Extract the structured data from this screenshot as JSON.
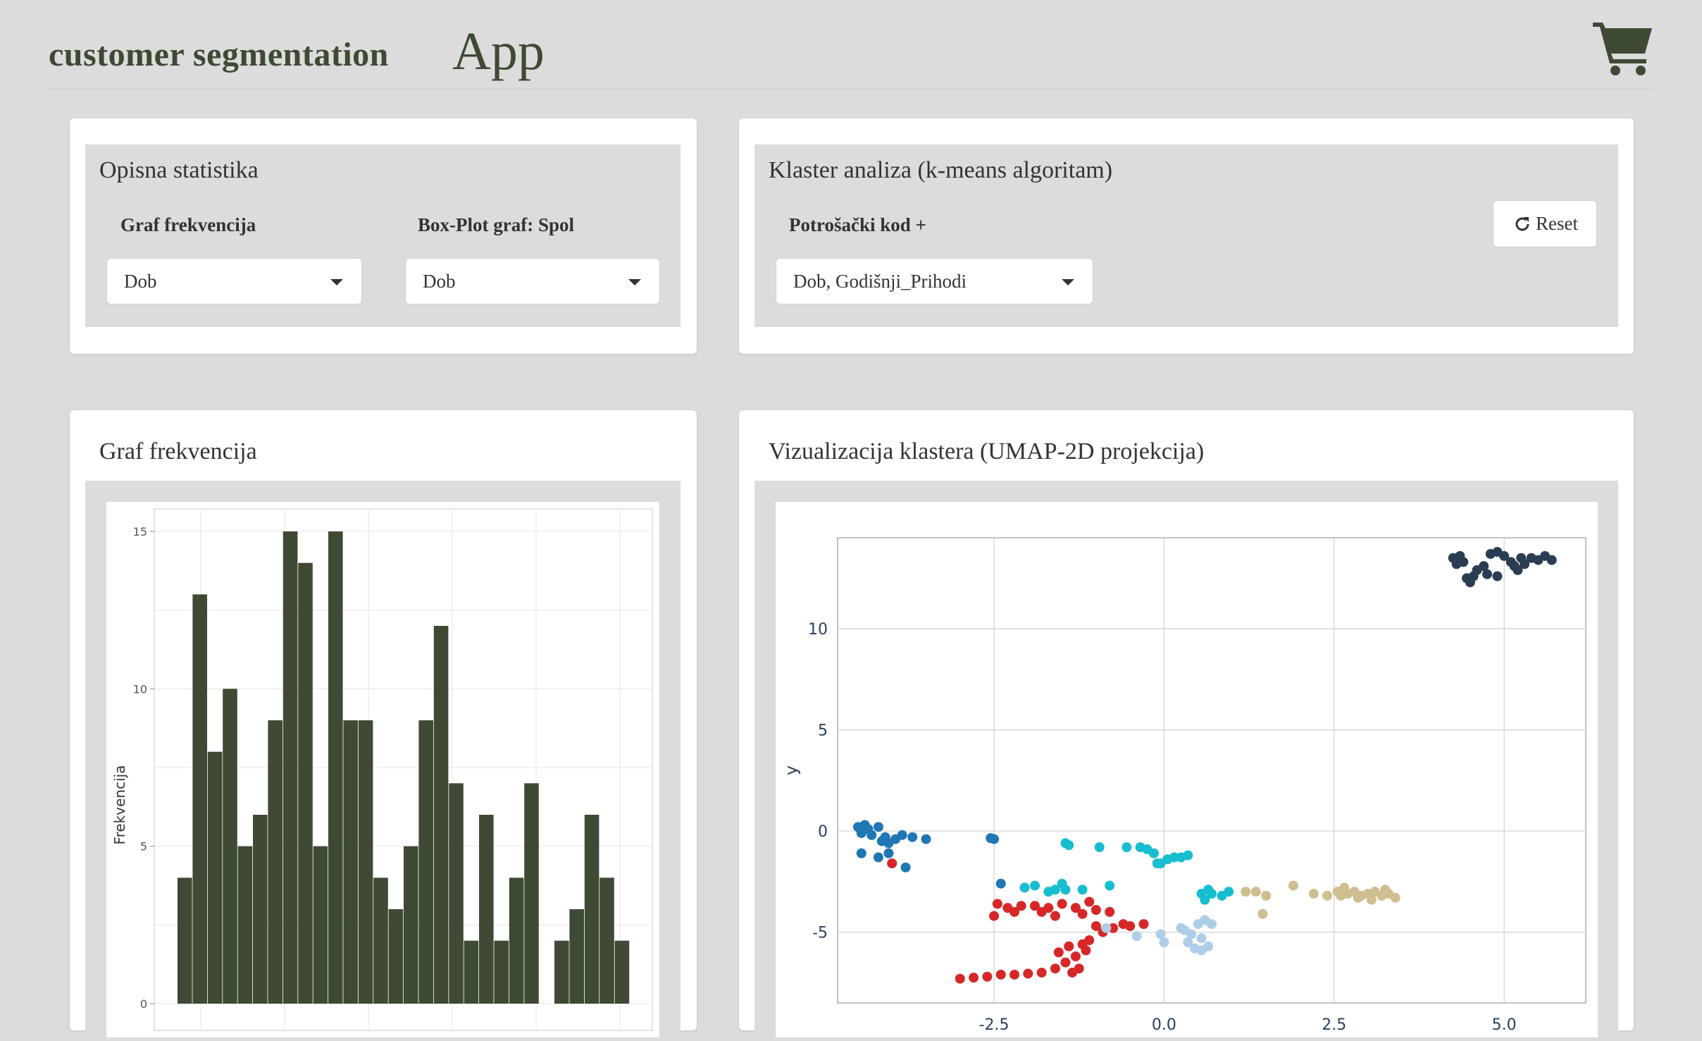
{
  "app": {
    "title_main": "customer segmentation",
    "title_suffix": "App",
    "cart_icon": "shopping-cart-icon",
    "accent_color": "#3e4a33"
  },
  "descriptive": {
    "title": "Opisna statistika",
    "freq_label": "Graf frekvencija",
    "freq_value": "Dob",
    "box_label": "Box-Plot graf: Spol",
    "box_value": "Dob"
  },
  "cluster": {
    "title": "Klaster analiza (k-means algoritam)",
    "code_label": "Potrošački kod +",
    "code_value": "Dob, Godišnji_Prihodi",
    "reset_label": "Reset"
  },
  "freq_chart_card": {
    "title": "Graf frekvencija"
  },
  "umap_card": {
    "title": "Vizualizacija klastera (UMAP-2D projekcija)"
  },
  "chart_data": [
    {
      "type": "bar",
      "ylabel": "Frekvencija",
      "ylim": [
        0,
        15
      ],
      "yticks": [
        "0",
        "5",
        "10",
        "15"
      ],
      "grid": true,
      "color": "#3e4a33",
      "values": [
        4,
        13,
        8,
        10,
        5,
        6,
        9,
        15,
        14,
        5,
        15,
        9,
        9,
        4,
        3,
        5,
        9,
        12,
        7,
        2,
        6,
        2,
        4,
        7,
        0,
        2,
        3,
        6,
        4,
        2
      ]
    },
    {
      "type": "scatter",
      "ylabel": "y",
      "yticks": [
        "10",
        "5",
        "0",
        "-5"
      ],
      "xticks": [
        "-2.5",
        "0.0",
        "2.5",
        "5.0"
      ],
      "xlim": [
        -4.8,
        6.2
      ],
      "ylim": [
        -8.5,
        14.5
      ],
      "grid": true,
      "series": [
        {
          "color": "#2b3d52",
          "points": [
            [
              4.25,
              13.5
            ],
            [
              4.3,
              13.2
            ],
            [
              4.35,
              13.6
            ],
            [
              4.4,
              13.3
            ],
            [
              4.45,
              12.5
            ],
            [
              4.5,
              12.3
            ],
            [
              4.55,
              12.6
            ],
            [
              4.6,
              12.9
            ],
            [
              4.7,
              13.1
            ],
            [
              4.75,
              12.7
            ],
            [
              4.8,
              13.7
            ],
            [
              4.9,
              12.6
            ],
            [
              5.0,
              13.6
            ],
            [
              5.1,
              13.3
            ],
            [
              5.2,
              12.9
            ],
            [
              5.25,
              13.5
            ],
            [
              5.3,
              13.2
            ],
            [
              5.4,
              13.5
            ],
            [
              5.5,
              13.4
            ],
            [
              5.6,
              13.6
            ],
            [
              5.7,
              13.4
            ],
            [
              4.9,
              13.8
            ],
            [
              5.15,
              13.1
            ]
          ]
        },
        {
          "color": "#1f77b4",
          "points": [
            [
              -4.5,
              0.2
            ],
            [
              -4.45,
              -0.1
            ],
            [
              -4.4,
              0.3
            ],
            [
              -4.35,
              0.1
            ],
            [
              -4.3,
              -0.2
            ],
            [
              -4.2,
              0.2
            ],
            [
              -4.15,
              -0.5
            ],
            [
              -4.1,
              -0.3
            ],
            [
              -4.05,
              -0.6
            ],
            [
              -3.95,
              -0.4
            ],
            [
              -3.85,
              -0.2
            ],
            [
              -3.7,
              -0.3
            ],
            [
              -3.5,
              -0.4
            ],
            [
              -4.45,
              -1.1
            ],
            [
              -4.2,
              -1.3
            ],
            [
              -4.05,
              -1.1
            ],
            [
              -3.8,
              -1.8
            ],
            [
              -2.55,
              -0.35
            ],
            [
              -2.5,
              -0.4
            ],
            [
              -2.4,
              -2.6
            ]
          ]
        },
        {
          "color": "#d62728",
          "points": [
            [
              -4.0,
              -1.6
            ],
            [
              -2.45,
              -3.6
            ],
            [
              -2.3,
              -3.8
            ],
            [
              -2.1,
              -3.7
            ],
            [
              -1.9,
              -3.7
            ],
            [
              -1.7,
              -3.8
            ],
            [
              -1.5,
              -3.6
            ],
            [
              -2.5,
              -4.2
            ],
            [
              -2.2,
              -4.0
            ],
            [
              -1.8,
              -4.0
            ],
            [
              -1.6,
              -4.2
            ],
            [
              -1.3,
              -3.8
            ],
            [
              -1.2,
              -4.1
            ],
            [
              -1.0,
              -3.9
            ],
            [
              -0.8,
              -4.0
            ],
            [
              -1.1,
              -3.5
            ],
            [
              -1.0,
              -4.7
            ],
            [
              -0.9,
              -5.0
            ],
            [
              -0.75,
              -4.8
            ],
            [
              -0.6,
              -4.6
            ],
            [
              -0.5,
              -4.7
            ],
            [
              -0.3,
              -4.6
            ],
            [
              -1.1,
              -5.4
            ],
            [
              -1.15,
              -5.9
            ],
            [
              -1.3,
              -6.2
            ],
            [
              -1.45,
              -6.5
            ],
            [
              -1.6,
              -6.8
            ],
            [
              -1.8,
              -7.0
            ],
            [
              -2.0,
              -7.05
            ],
            [
              -2.2,
              -7.1
            ],
            [
              -2.4,
              -7.1
            ],
            [
              -2.6,
              -7.2
            ],
            [
              -2.8,
              -7.25
            ],
            [
              -3.0,
              -7.3
            ],
            [
              -1.35,
              -7.0
            ],
            [
              -1.25,
              -6.8
            ],
            [
              -1.4,
              -5.7
            ],
            [
              -1.55,
              -6.0
            ],
            [
              -1.2,
              -5.6
            ]
          ]
        },
        {
          "color": "#17becf",
          "points": [
            [
              -2.05,
              -2.8
            ],
            [
              -1.9,
              -2.7
            ],
            [
              -1.7,
              -3.0
            ],
            [
              -1.6,
              -2.9
            ],
            [
              -1.5,
              -2.6
            ],
            [
              -1.45,
              -2.9
            ],
            [
              -1.2,
              -2.9
            ],
            [
              -1.4,
              -0.7
            ],
            [
              -1.45,
              -0.6
            ],
            [
              -0.95,
              -0.8
            ],
            [
              -0.8,
              -2.7
            ],
            [
              -0.55,
              -0.8
            ],
            [
              -0.35,
              -0.8
            ],
            [
              -0.25,
              -0.9
            ],
            [
              -0.15,
              -1.1
            ],
            [
              -0.1,
              -1.6
            ],
            [
              -0.05,
              -1.6
            ],
            [
              0.05,
              -1.4
            ],
            [
              0.15,
              -1.3
            ],
            [
              0.25,
              -1.3
            ],
            [
              0.35,
              -1.2
            ],
            [
              0.55,
              -3.1
            ],
            [
              0.6,
              -3.4
            ],
            [
              0.7,
              -3.1
            ],
            [
              0.95,
              -3.0
            ],
            [
              0.65,
              -2.9
            ],
            [
              0.85,
              -3.2
            ]
          ]
        },
        {
          "color": "#aecde6",
          "points": [
            [
              -0.85,
              -4.8
            ],
            [
              -0.4,
              -5.2
            ],
            [
              -0.05,
              -5.1
            ],
            [
              0.0,
              -5.5
            ],
            [
              0.3,
              -4.9
            ],
            [
              0.4,
              -5.1
            ],
            [
              0.5,
              -4.6
            ],
            [
              0.6,
              -4.4
            ],
            [
              0.7,
              -4.6
            ],
            [
              0.55,
              -5.3
            ],
            [
              0.45,
              -5.8
            ],
            [
              0.55,
              -5.9
            ],
            [
              0.65,
              -5.7
            ],
            [
              0.25,
              -4.8
            ],
            [
              0.35,
              -5.5
            ]
          ]
        },
        {
          "color": "#cfbf90",
          "points": [
            [
              1.2,
              -3.0
            ],
            [
              1.35,
              -3.0
            ],
            [
              1.5,
              -3.2
            ],
            [
              1.9,
              -2.7
            ],
            [
              2.2,
              -3.1
            ],
            [
              2.4,
              -3.2
            ],
            [
              2.55,
              -3.0
            ],
            [
              2.6,
              -3.2
            ],
            [
              2.7,
              -3.1
            ],
            [
              2.8,
              -3.0
            ],
            [
              2.9,
              -3.2
            ],
            [
              3.0,
              -3.1
            ],
            [
              3.1,
              -3.0
            ],
            [
              3.2,
              -3.2
            ],
            [
              3.3,
              -3.1
            ],
            [
              3.4,
              -3.3
            ],
            [
              2.65,
              -2.8
            ],
            [
              2.85,
              -3.3
            ],
            [
              3.05,
              -3.4
            ],
            [
              3.25,
              -2.9
            ],
            [
              1.45,
              -4.1
            ]
          ]
        }
      ]
    }
  ]
}
